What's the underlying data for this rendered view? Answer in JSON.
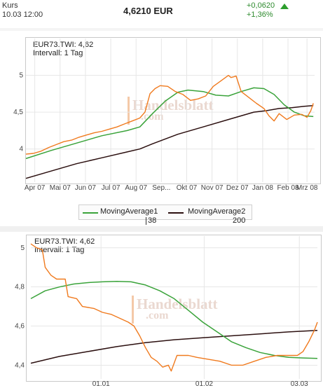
{
  "header": {
    "label": "Kurs",
    "datetime": "10.03 12:00",
    "price": "4,6210 EUR",
    "change_abs": "+0,0620",
    "change_pct": "+1,36%",
    "change_icon": "up-arrow-icon",
    "change_color": "#2d9e2d"
  },
  "legend": {
    "items": [
      {
        "label": "MovingAverage1",
        "color": "#3aa33a"
      },
      {
        "label": "MovingAverage2",
        "color": "#2b0f0f"
      }
    ],
    "ma1_period": "38",
    "ma2_period": "200"
  },
  "watermark": {
    "line1": "Handelsblatt",
    "line2": ".com"
  },
  "chart_data": [
    {
      "type": "line",
      "info_line1": "EUR73.TWI: 4,62",
      "info_line2": "Intervall: 1 Tag",
      "ylim": [
        3.55,
        5.5
      ],
      "yticks": [
        {
          "value": 4,
          "label": "4"
        },
        {
          "value": 4.5,
          "label": "4,5"
        },
        {
          "value": 5,
          "label": "5"
        }
      ],
      "xlim": [
        0,
        11.4
      ],
      "xticks": [
        {
          "pos": 0.35,
          "label": "Apr 07"
        },
        {
          "pos": 1.35,
          "label": "Mai 07"
        },
        {
          "pos": 2.35,
          "label": "Jun 07"
        },
        {
          "pos": 3.35,
          "label": "Jul 07"
        },
        {
          "pos": 4.35,
          "label": "Aug 07"
        },
        {
          "pos": 5.35,
          "label": "Sep..."
        },
        {
          "pos": 6.35,
          "label": "Okt 07"
        },
        {
          "pos": 7.35,
          "label": "Nov 07"
        },
        {
          "pos": 8.35,
          "label": "Dez 07"
        },
        {
          "pos": 9.35,
          "label": "Jan 08"
        },
        {
          "pos": 10.35,
          "label": "Feb 08"
        },
        {
          "pos": 11.1,
          "label": "Mrz 08"
        }
      ],
      "series": [
        {
          "role": "price",
          "color": "#f07a1e",
          "points": [
            [
              0,
              3.93
            ],
            [
              0.3,
              3.94
            ],
            [
              0.6,
              3.97
            ],
            [
              0.9,
              4.02
            ],
            [
              1.2,
              4.06
            ],
            [
              1.5,
              4.1
            ],
            [
              1.8,
              4.12
            ],
            [
              2.1,
              4.16
            ],
            [
              2.4,
              4.19
            ],
            [
              2.7,
              4.22
            ],
            [
              3.0,
              4.24
            ],
            [
              3.3,
              4.27
            ],
            [
              3.6,
              4.3
            ],
            [
              3.9,
              4.34
            ],
            [
              4.2,
              4.38
            ],
            [
              4.5,
              4.42
            ],
            [
              4.7,
              4.5
            ],
            [
              4.9,
              4.75
            ],
            [
              5.1,
              4.82
            ],
            [
              5.3,
              4.86
            ],
            [
              5.6,
              4.85
            ],
            [
              5.9,
              4.78
            ],
            [
              6.2,
              4.74
            ],
            [
              6.5,
              4.66
            ],
            [
              6.8,
              4.68
            ],
            [
              7.1,
              4.72
            ],
            [
              7.4,
              4.85
            ],
            [
              7.6,
              4.9
            ],
            [
              7.8,
              4.95
            ],
            [
              8.0,
              5.0
            ],
            [
              8.1,
              4.97
            ],
            [
              8.2,
              4.98
            ],
            [
              8.3,
              4.99
            ],
            [
              8.5,
              4.78
            ],
            [
              8.8,
              4.7
            ],
            [
              9.1,
              4.62
            ],
            [
              9.4,
              4.55
            ],
            [
              9.6,
              4.45
            ],
            [
              9.8,
              4.38
            ],
            [
              10.0,
              4.48
            ],
            [
              10.3,
              4.4
            ],
            [
              10.6,
              4.46
            ],
            [
              10.9,
              4.47
            ],
            [
              11.1,
              4.43
            ],
            [
              11.25,
              4.52
            ],
            [
              11.35,
              4.62
            ]
          ]
        },
        {
          "role": "ma1",
          "color": "#3aa33a",
          "points": [
            [
              0,
              3.87
            ],
            [
              1,
              3.98
            ],
            [
              2,
              4.08
            ],
            [
              3,
              4.18
            ],
            [
              4,
              4.25
            ],
            [
              4.5,
              4.3
            ],
            [
              5,
              4.48
            ],
            [
              5.5,
              4.65
            ],
            [
              6,
              4.77
            ],
            [
              6.4,
              4.8
            ],
            [
              7,
              4.78
            ],
            [
              7.5,
              4.73
            ],
            [
              8,
              4.72
            ],
            [
              8.5,
              4.78
            ],
            [
              9,
              4.83
            ],
            [
              9.4,
              4.82
            ],
            [
              9.8,
              4.74
            ],
            [
              10.2,
              4.6
            ],
            [
              10.6,
              4.5
            ],
            [
              11,
              4.45
            ],
            [
              11.35,
              4.44
            ]
          ]
        },
        {
          "role": "ma2",
          "color": "#2b0f0f",
          "points": [
            [
              0,
              3.6
            ],
            [
              1,
              3.7
            ],
            [
              2,
              3.8
            ],
            [
              3,
              3.88
            ],
            [
              4,
              3.96
            ],
            [
              4.5,
              4.0
            ],
            [
              5,
              4.07
            ],
            [
              6,
              4.2
            ],
            [
              7,
              4.3
            ],
            [
              8,
              4.4
            ],
            [
              9,
              4.5
            ],
            [
              9.5,
              4.52
            ],
            [
              10,
              4.55
            ],
            [
              10.5,
              4.56
            ],
            [
              11,
              4.58
            ],
            [
              11.35,
              4.59
            ]
          ]
        }
      ]
    },
    {
      "type": "line",
      "info_line1": "EUR73.TWI: 4,62",
      "info_line2": "Intervall: 1 Tag",
      "ylim": [
        4.33,
        5.06
      ],
      "yticks": [
        {
          "value": 4.4,
          "label": "4,4"
        },
        {
          "value": 4.6,
          "label": "4,6"
        },
        {
          "value": 4.8,
          "label": "4,8"
        },
        {
          "value": 5.0,
          "label": "5"
        }
      ],
      "xlim": [
        0,
        100
      ],
      "xticks": [
        {
          "pos": 24.5,
          "label": "01.01"
        },
        {
          "pos": 60.5,
          "label": "01.02"
        },
        {
          "pos": 93.7,
          "label": "03.03"
        }
      ],
      "series": [
        {
          "role": "price",
          "color": "#f07a1e",
          "points": [
            [
              0,
              5.02
            ],
            [
              2,
              5.0
            ],
            [
              4,
              4.99
            ],
            [
              5,
              4.9
            ],
            [
              7,
              4.86
            ],
            [
              9,
              4.84
            ],
            [
              12,
              4.84
            ],
            [
              13,
              4.75
            ],
            [
              16,
              4.74
            ],
            [
              18,
              4.7
            ],
            [
              22,
              4.69
            ],
            [
              25,
              4.67
            ],
            [
              28,
              4.66
            ],
            [
              31,
              4.64
            ],
            [
              34,
              4.62
            ],
            [
              36,
              4.6
            ],
            [
              38,
              4.55
            ],
            [
              40,
              4.49
            ],
            [
              42,
              4.44
            ],
            [
              44,
              4.42
            ],
            [
              46,
              4.39
            ],
            [
              48,
              4.4
            ],
            [
              49,
              4.37
            ],
            [
              51,
              4.45
            ],
            [
              55,
              4.45
            ],
            [
              58,
              4.44
            ],
            [
              62,
              4.43
            ],
            [
              66,
              4.42
            ],
            [
              70,
              4.4
            ],
            [
              74,
              4.4
            ],
            [
              78,
              4.42
            ],
            [
              82,
              4.44
            ],
            [
              86,
              4.45
            ],
            [
              90,
              4.45
            ],
            [
              93,
              4.45
            ],
            [
              95,
              4.47
            ],
            [
              97,
              4.52
            ],
            [
              99,
              4.58
            ],
            [
              100,
              4.62
            ]
          ]
        },
        {
          "role": "ma1",
          "color": "#3aa33a",
          "points": [
            [
              0,
              4.74
            ],
            [
              5,
              4.78
            ],
            [
              10,
              4.8
            ],
            [
              15,
              4.815
            ],
            [
              20,
              4.822
            ],
            [
              25,
              4.826
            ],
            [
              30,
              4.828
            ],
            [
              35,
              4.826
            ],
            [
              40,
              4.81
            ],
            [
              45,
              4.78
            ],
            [
              50,
              4.74
            ],
            [
              55,
              4.68
            ],
            [
              60,
              4.62
            ],
            [
              65,
              4.57
            ],
            [
              70,
              4.52
            ],
            [
              75,
              4.49
            ],
            [
              80,
              4.465
            ],
            [
              85,
              4.45
            ],
            [
              90,
              4.44
            ],
            [
              95,
              4.437
            ],
            [
              100,
              4.435
            ]
          ]
        },
        {
          "role": "ma2",
          "color": "#2b0f0f",
          "points": [
            [
              0,
              4.41
            ],
            [
              10,
              4.445
            ],
            [
              20,
              4.47
            ],
            [
              30,
              4.495
            ],
            [
              40,
              4.515
            ],
            [
              50,
              4.53
            ],
            [
              60,
              4.54
            ],
            [
              70,
              4.55
            ],
            [
              80,
              4.56
            ],
            [
              90,
              4.57
            ],
            [
              100,
              4.578
            ]
          ]
        }
      ]
    }
  ]
}
